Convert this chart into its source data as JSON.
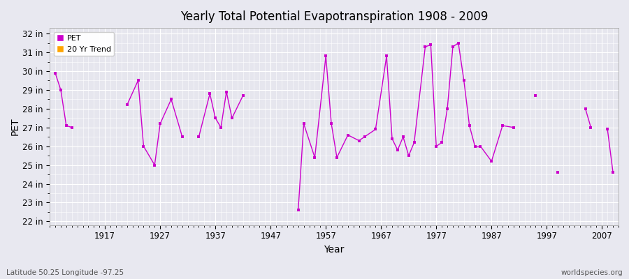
{
  "title": "Yearly Total Potential Evapotranspiration 1908 - 2009",
  "xlabel": "Year",
  "ylabel": "PET",
  "lat_lon_label": "Latitude 50.25 Longitude -97.25",
  "source_label": "worldspecies.org",
  "x_ticks": [
    1917,
    1927,
    1937,
    1947,
    1957,
    1967,
    1977,
    1987,
    1997,
    2007
  ],
  "y_ticks": [
    22,
    23,
    24,
    25,
    26,
    27,
    28,
    29,
    30,
    31,
    32
  ],
  "ylim": [
    21.8,
    32.3
  ],
  "xlim": [
    1907,
    2010
  ],
  "bg_color": "#e8e8f0",
  "plot_bg_color": "#e6e6ee",
  "grid_color": "#ffffff",
  "line_color": "#cc00cc",
  "marker_color": "#cc00cc",
  "trend_color": "#ffa500",
  "pet_data": {
    "1908": 29.9,
    "1909": 29.0,
    "1910": 27.1,
    "1911": 27.0,
    "1921": 28.2,
    "1923": 29.5,
    "1924": 26.0,
    "1926": 25.0,
    "1927": 27.2,
    "1929": 28.5,
    "1931": 26.5,
    "1934": 26.5,
    "1936": 28.8,
    "1937": 27.5,
    "1938": 27.0,
    "1939": 28.9,
    "1940": 27.5,
    "1942": 28.7,
    "1952": 22.6,
    "1953": 27.2,
    "1955": 25.4,
    "1957": 30.8,
    "1958": 27.2,
    "1959": 25.4,
    "1961": 26.6,
    "1963": 26.3,
    "1964": 26.5,
    "1966": 26.9,
    "1968": 30.8,
    "1969": 26.4,
    "1970": 25.8,
    "1971": 26.5,
    "1972": 25.5,
    "1973": 26.2,
    "1975": 31.3,
    "1976": 31.4,
    "1977": 26.0,
    "1978": 26.2,
    "1979": 28.0,
    "1980": 31.3,
    "1981": 31.5,
    "1982": 29.5,
    "1983": 27.1,
    "1984": 26.0,
    "1985": 26.0,
    "1987": 25.2,
    "1989": 27.1,
    "1991": 27.0,
    "1995": 28.7,
    "1999": 24.6,
    "2004": 28.0,
    "2005": 27.0,
    "2008": 26.9,
    "2009": 24.6
  }
}
